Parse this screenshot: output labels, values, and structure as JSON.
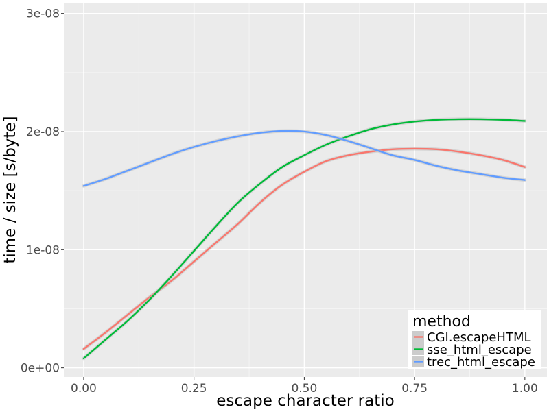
{
  "chart_data": {
    "type": "line",
    "title": "",
    "xlabel": "escape character ratio",
    "ylabel": "time / size [s/byte]",
    "xlim": [
      -0.045,
      1.05
    ],
    "ylim": [
      -7.75e-10,
      3.085e-08
    ],
    "x_ticks": [
      0,
      0.25,
      0.5,
      0.75,
      1.0
    ],
    "x_tick_labels": [
      "0.00",
      "0.25",
      "0.50",
      "0.75",
      "1.00"
    ],
    "y_ticks": [
      0,
      1e-08,
      2e-08,
      3e-08
    ],
    "y_tick_labels": [
      "0e+00",
      "1e-08",
      "2e-08",
      "3e-08"
    ],
    "grid": true,
    "legend_title": "method",
    "legend_position": "bottom-right inside",
    "background_color": "#ebebeb",
    "grid_color": "#ffffff",
    "x": [
      0,
      0.05,
      0.1,
      0.15,
      0.2,
      0.25,
      0.3,
      0.35,
      0.4,
      0.45,
      0.5,
      0.55,
      0.6,
      0.65,
      0.7,
      0.75,
      0.8,
      0.85,
      0.9,
      0.95,
      1.0
    ],
    "series": [
      {
        "name": "CGI.escapeHTML",
        "color": "#f8766d",
        "values": [
          1.6e-09,
          3e-09,
          4.5e-09,
          6e-09,
          7.4e-09,
          9e-09,
          1.06e-08,
          1.22e-08,
          1.4e-08,
          1.55e-08,
          1.66e-08,
          1.75e-08,
          1.8e-08,
          1.83e-08,
          1.85e-08,
          1.855e-08,
          1.85e-08,
          1.83e-08,
          1.8e-08,
          1.76e-08,
          1.7e-08
        ]
      },
      {
        "name": "sse_html_escape",
        "color": "#00ba38",
        "values": [
          8e-10,
          2.4e-09,
          4e-09,
          5.8e-09,
          7.8e-09,
          9.9e-09,
          1.2e-08,
          1.4e-08,
          1.56e-08,
          1.7e-08,
          1.8e-08,
          1.89e-08,
          1.96e-08,
          2.02e-08,
          2.06e-08,
          2.085e-08,
          2.1e-08,
          2.105e-08,
          2.105e-08,
          2.1e-08,
          2.09e-08
        ]
      },
      {
        "name": "trec_html_escape",
        "color": "#619cff",
        "values": [
          1.54e-08,
          1.6e-08,
          1.67e-08,
          1.74e-08,
          1.81e-08,
          1.87e-08,
          1.92e-08,
          1.96e-08,
          1.99e-08,
          2.005e-08,
          2e-08,
          1.97e-08,
          1.92e-08,
          1.86e-08,
          1.8e-08,
          1.76e-08,
          1.71e-08,
          1.67e-08,
          1.64e-08,
          1.61e-08,
          1.59e-08
        ]
      }
    ]
  }
}
